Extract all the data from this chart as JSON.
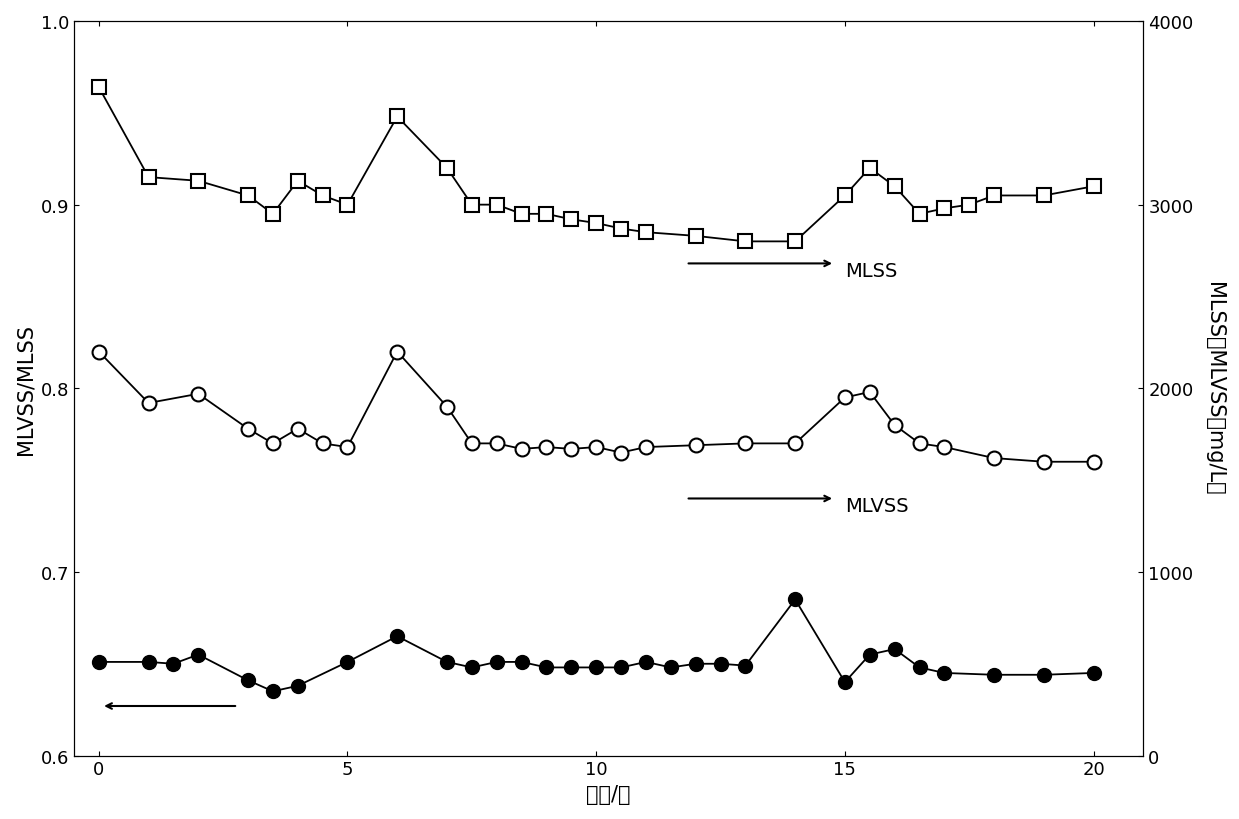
{
  "xlabel": "时间/天",
  "ylabel_left": "MLVSS/MLSS",
  "ylabel_right": "MLSS或MLVSS（mg/L）",
  "xlim": [
    -0.5,
    21
  ],
  "ylim_left": [
    0.6,
    1.0
  ],
  "ylim_right": [
    0,
    4000
  ],
  "xticks": [
    0,
    5,
    10,
    15,
    20
  ],
  "yticks_left": [
    0.6,
    0.7,
    0.8,
    0.9,
    1.0
  ],
  "yticks_right": [
    0,
    1000,
    2000,
    3000,
    4000
  ],
  "mlss_x": [
    0,
    1,
    2,
    3,
    3.5,
    4,
    4.5,
    5,
    6,
    7,
    7.5,
    8,
    8.5,
    9,
    9.5,
    10,
    10.5,
    11,
    12,
    13,
    14,
    15,
    15.5,
    16,
    16.5,
    17,
    17.5,
    18,
    19,
    20
  ],
  "mlss_y": [
    0.964,
    0.915,
    0.913,
    0.905,
    0.895,
    0.913,
    0.905,
    0.9,
    0.948,
    0.92,
    0.9,
    0.9,
    0.895,
    0.895,
    0.892,
    0.89,
    0.887,
    0.885,
    0.883,
    0.88,
    0.88,
    0.905,
    0.92,
    0.91,
    0.895,
    0.898,
    0.9,
    0.905,
    0.905,
    0.91
  ],
  "mlvss_x": [
    0,
    1,
    2,
    3,
    3.5,
    4,
    4.5,
    5,
    6,
    7,
    7.5,
    8,
    8.5,
    9,
    9.5,
    10,
    10.5,
    11,
    12,
    13,
    14,
    15,
    15.5,
    16,
    16.5,
    17,
    18,
    19,
    20
  ],
  "mlvss_y": [
    0.82,
    0.792,
    0.797,
    0.778,
    0.77,
    0.778,
    0.77,
    0.768,
    0.82,
    0.79,
    0.77,
    0.77,
    0.767,
    0.768,
    0.767,
    0.768,
    0.765,
    0.768,
    0.769,
    0.77,
    0.77,
    0.795,
    0.798,
    0.78,
    0.77,
    0.768,
    0.762,
    0.76,
    0.76
  ],
  "ratio_x": [
    0,
    1,
    1.5,
    2,
    3,
    3.5,
    4,
    5,
    6,
    7,
    7.5,
    8,
    8.5,
    9,
    9.5,
    10,
    10.5,
    11,
    11.5,
    12,
    12.5,
    13,
    14,
    15,
    15.5,
    16,
    16.5,
    17,
    18,
    19,
    20
  ],
  "ratio_y": [
    0.651,
    0.651,
    0.65,
    0.655,
    0.641,
    0.635,
    0.638,
    0.651,
    0.665,
    0.651,
    0.648,
    0.651,
    0.651,
    0.648,
    0.648,
    0.648,
    0.648,
    0.651,
    0.648,
    0.65,
    0.65,
    0.649,
    0.685,
    0.64,
    0.655,
    0.658,
    0.648,
    0.645,
    0.644,
    0.644,
    0.645
  ],
  "background_color": "#ffffff",
  "line_color": "#000000",
  "fontsize_label": 15,
  "fontsize_tick": 13,
  "fontsize_annot": 14
}
